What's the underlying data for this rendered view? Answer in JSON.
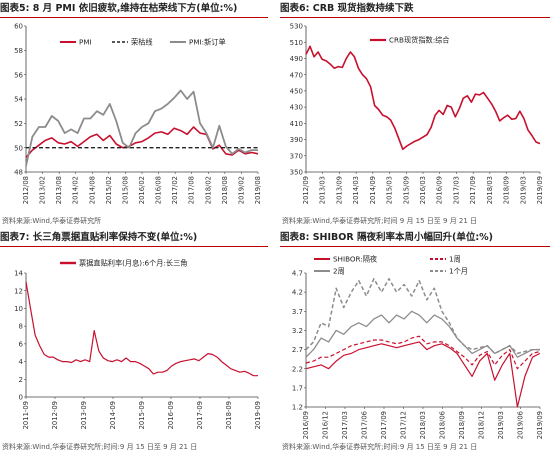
{
  "colors": {
    "accent": "#c8102e",
    "gray": "#8c8c8c",
    "dashed": "#222222",
    "title_bar": "#c00000"
  },
  "charts": [
    {
      "title": "图表5:  8 月 PMI 依旧疲软,维持在枯荣线下方(单位:%)",
      "source": "资料来源:Wind,华泰证券研究所",
      "chart_data": {
        "type": "line",
        "x_ticks": [
          "2012/08",
          "2013/02",
          "2013/08",
          "2014/02",
          "2014/08",
          "2015/02",
          "2015/08",
          "2016/02",
          "2016/08",
          "2017/02",
          "2017/08",
          "2018/02",
          "2018/08",
          "2019/02",
          "2019/08"
        ],
        "ylim": [
          48,
          60
        ],
        "y_ticks": [
          48,
          50,
          52,
          54,
          56,
          58,
          60
        ],
        "legend": [
          "PMI",
          "荣枯线",
          "PMI:新订单"
        ],
        "series": [
          {
            "name": "PMI",
            "values": [
              49.2,
              49.8,
              50.2,
              50.6,
              50.8,
              50.4,
              50.3,
              50.5,
              50.1,
              50.5,
              50.9,
              51.1,
              50.6,
              51.0,
              50.3,
              50.0,
              50.1,
              50.4,
              50.5,
              50.8,
              51.2,
              51.3,
              51.1,
              51.6,
              51.4,
              51.1,
              51.7,
              51.2,
              51.1,
              49.9,
              50.2,
              49.5,
              49.4,
              49.8,
              49.5,
              49.6,
              49.5
            ],
            "colorKey": "accent"
          },
          {
            "name": "荣枯线",
            "values": [
              50,
              50
            ],
            "colorKey": "dashed"
          },
          {
            "name": "PMI:新订单",
            "values": [
              48.5,
              50.9,
              51.7,
              51.7,
              52.6,
              52.2,
              51.2,
              51.5,
              51.2,
              52.4,
              52.4,
              53.0,
              52.7,
              53.6,
              52.2,
              50.4,
              50.0,
              51.2,
              51.7,
              52.0,
              53.0,
              53.2,
              53.6,
              54.1,
              54.7,
              54.0,
              54.6,
              52.0,
              51.2,
              50.0,
              51.8,
              50.1,
              49.5,
              49.9,
              49.6,
              49.8,
              49.8
            ],
            "colorKey": "gray"
          }
        ]
      }
    },
    {
      "title": "图表6:  CRB 现货指数持续下跌",
      "source": "资料来源:Wind,华泰证券研究所;时间 9 月 15 日至 9 月 21 日",
      "chart_data": {
        "type": "line",
        "x_ticks": [
          "2012/09",
          "2013/03",
          "2013/09",
          "2014/03",
          "2014/09",
          "2015/03",
          "2015/09",
          "2016/03",
          "2016/09",
          "2017/03",
          "2017/09",
          "2018/03",
          "2018/09",
          "2019/03",
          "2019/09"
        ],
        "ylim": [
          350,
          530
        ],
        "y_ticks": [
          350,
          370,
          390,
          410,
          430,
          450,
          470,
          490,
          510,
          530
        ],
        "legend": [
          "CRB现货指数:综合"
        ],
        "series": [
          {
            "name": "CRB现货指数:综合",
            "values": [
              495,
              505,
              492,
              498,
              489,
              487,
              483,
              478,
              480,
              479,
              490,
              498,
              492,
              478,
              470,
              465,
              455,
              432,
              427,
              420,
              418,
              414,
              404,
              391,
              378,
              382,
              385,
              388,
              390,
              393,
              396,
              405,
              420,
              426,
              421,
              432,
              430,
              418,
              428,
              441,
              444,
              436,
              446,
              445,
              448,
              441,
              434,
              425,
              413,
              417,
              420,
              415,
              416,
              425,
              416,
              402,
              395,
              387,
              385
            ],
            "colorKey": "accent"
          }
        ]
      }
    },
    {
      "title": "图表7:  长三角票据直贴利率保持不变(单位:%)",
      "source": "资料来源:Wind,华泰证券研究所;时间:9 月 15 日至 9 月 21 日",
      "chart_data": {
        "type": "line",
        "x_ticks": [
          "2011-09",
          "2012-09",
          "2013-09",
          "2014-09",
          "2015-09",
          "2016-09",
          "2017-09",
          "2018-09",
          "2019-09"
        ],
        "ylim": [
          0,
          14
        ],
        "y_ticks": [
          0,
          2,
          4,
          6,
          8,
          10,
          12,
          14
        ],
        "legend": [
          "票据直贴利率(月息):6个月:长三角"
        ],
        "series": [
          {
            "name": "票据直贴利率(月息):6个月:长三角",
            "values": [
              13,
              10,
              7,
              5.8,
              4.8,
              4.5,
              4.5,
              4.2,
              4.0,
              4.0,
              3.9,
              4.2,
              4.0,
              4.2,
              4.0,
              7.5,
              5.2,
              4.4,
              4.1,
              4.0,
              4.2,
              4.0,
              4.4,
              4.0,
              4.0,
              3.8,
              3.5,
              3.2,
              2.6,
              2.8,
              2.8,
              3.0,
              3.5,
              3.8,
              4.0,
              4.1,
              4.2,
              4.3,
              4.1,
              4.5,
              4.9,
              4.8,
              4.5,
              4.0,
              3.6,
              3.2,
              3.0,
              2.8,
              2.9,
              2.7,
              2.4,
              2.4
            ],
            "colorKey": "accent"
          }
        ]
      }
    },
    {
      "title": "图表8:  SHIBOR 隔夜利率本周小幅回升(单位:%)",
      "source": "资料来源:Wind,华泰证券研究所;时间:9 月 15 日至 9 月 21 日",
      "chart_data": {
        "type": "line",
        "x_ticks": [
          "2016/09",
          "2016/12",
          "2017/03",
          "2017/06",
          "2017/09",
          "2017/12",
          "2018/03",
          "2018/06",
          "2018/09",
          "2018/12",
          "2019/03",
          "2019/06",
          "2019/09"
        ],
        "ylim": [
          1.2,
          4.7
        ],
        "y_ticks": [
          1.2,
          1.7,
          2.2,
          2.7,
          3.2,
          3.7,
          4.2,
          4.7
        ],
        "legend": [
          "SHIBOR:隔夜",
          "1周",
          "2周",
          "1个月"
        ],
        "series": [
          {
            "name": "SHIBOR:隔夜",
            "values": [
              2.2,
              2.25,
              2.3,
              2.2,
              2.4,
              2.55,
              2.6,
              2.7,
              2.75,
              2.8,
              2.85,
              2.8,
              2.75,
              2.8,
              2.85,
              2.9,
              2.7,
              2.8,
              2.85,
              2.75,
              2.6,
              2.3,
              2.0,
              2.4,
              2.6,
              1.9,
              2.3,
              2.6,
              1.2,
              2.0,
              2.5,
              2.6
            ],
            "colorKey": "accent"
          },
          {
            "name": "1周",
            "values": [
              2.35,
              2.4,
              2.5,
              2.5,
              2.6,
              2.7,
              2.8,
              2.85,
              2.9,
              2.95,
              2.95,
              2.9,
              2.85,
              2.9,
              3.0,
              3.05,
              2.85,
              2.9,
              2.9,
              2.8,
              2.65,
              2.5,
              2.3,
              2.55,
              2.65,
              2.3,
              2.55,
              2.7,
              2.2,
              2.4,
              2.6,
              2.65
            ],
            "colorKey": "accent"
          },
          {
            "name": "2周",
            "values": [
              2.5,
              2.7,
              3.0,
              2.9,
              3.2,
              3.1,
              3.3,
              3.4,
              3.3,
              3.5,
              3.6,
              3.4,
              3.6,
              3.5,
              3.7,
              3.6,
              3.4,
              3.6,
              3.5,
              3.3,
              3.0,
              2.8,
              2.6,
              2.7,
              2.8,
              2.6,
              2.7,
              2.8,
              2.5,
              2.6,
              2.7,
              2.7
            ],
            "colorKey": "gray"
          },
          {
            "name": "1个月",
            "values": [
              2.7,
              2.9,
              3.4,
              3.3,
              4.3,
              3.8,
              4.2,
              4.5,
              4.1,
              4.55,
              4.2,
              4.55,
              4.2,
              4.4,
              4.1,
              4.5,
              4.0,
              4.3,
              3.7,
              3.4,
              3.0,
              2.8,
              2.7,
              2.75,
              2.8,
              2.6,
              2.7,
              2.8,
              2.6,
              2.65,
              2.7,
              2.7
            ],
            "colorKey": "gray"
          }
        ]
      }
    }
  ]
}
